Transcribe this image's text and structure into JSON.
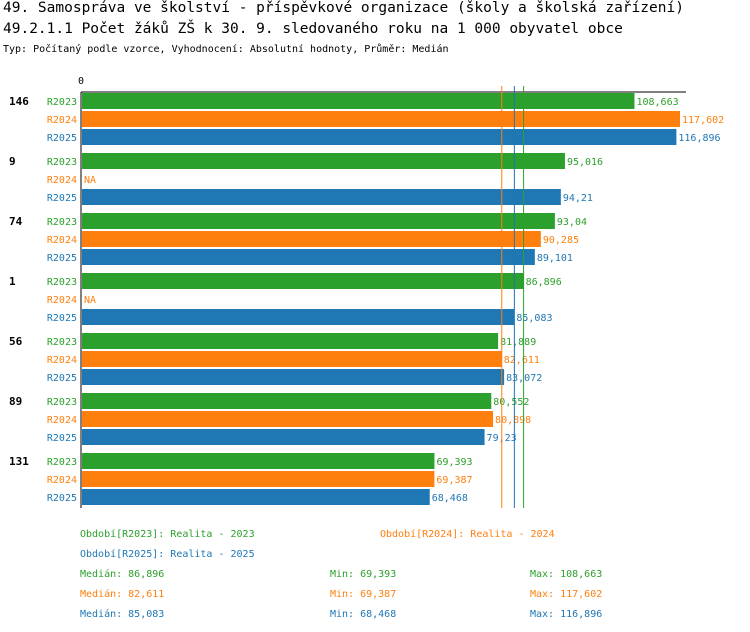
{
  "header": {
    "title_line1": "49. Samospráva ve školství - příspěvkové organizace (školy a školská zařízení)",
    "title_line2": "49.2.1.1 Počet žáků ZŠ k 30. 9. sledovaného roku  na 1 000 obyvatel obce",
    "subtitle": "Typ: Počítaný podle vzorce, Vyhodnocení: Absolutní hodnoty, Průměr: Medián"
  },
  "chart_data": {
    "type": "bar",
    "orientation": "horizontal",
    "axis_zero_label": "0",
    "xlim": [
      0,
      117.602
    ],
    "categories": [
      "146",
      "9",
      "74",
      "1",
      "56",
      "89",
      "131"
    ],
    "series": [
      {
        "name": "R2023",
        "color": "#2ca02c",
        "values": [
          108.663,
          95.016,
          93.04,
          86.896,
          81.889,
          80.552,
          69.393
        ],
        "labels": [
          "108,663",
          "95,016",
          "93,04",
          "86,896",
          "81,889",
          "80,552",
          "69,393"
        ]
      },
      {
        "name": "R2024",
        "color": "#ff7f0e",
        "values": [
          117.602,
          null,
          90.285,
          null,
          82.611,
          80.898,
          69.387
        ],
        "labels": [
          "117,602",
          "NA",
          "90,285",
          "NA",
          "82,611",
          "80,898",
          "69,387"
        ]
      },
      {
        "name": "R2025",
        "color": "#1f77b4",
        "values": [
          116.896,
          94.21,
          89.101,
          85.083,
          83.072,
          79.23,
          68.468
        ],
        "labels": [
          "116,896",
          "94,21",
          "89,101",
          "85,083",
          "83,072",
          "79,23",
          "68,468"
        ]
      }
    ],
    "median_lines": [
      {
        "series": "R2023",
        "value": 86.896
      },
      {
        "series": "R2024",
        "value": 82.611
      },
      {
        "series": "R2025",
        "value": 85.083
      }
    ]
  },
  "legend": {
    "r2023": "Období[R2023]: Realita - 2023",
    "r2024": "Období[R2024]: Realita - 2024",
    "r2025": "Období[R2025]: Realita - 2025"
  },
  "stats": [
    {
      "median": "Medián: 86,896",
      "min": "Min: 69,393",
      "max": "Max: 108,663"
    },
    {
      "median": "Medián: 82,611",
      "min": "Min: 69,387",
      "max": "Max: 117,602"
    },
    {
      "median": "Medián: 85,083",
      "min": "Min: 68,468",
      "max": "Max: 116,896"
    }
  ],
  "colors": {
    "r2023": "#2ca02c",
    "r2024": "#ff7f0e",
    "r2025": "#1f77b4"
  }
}
